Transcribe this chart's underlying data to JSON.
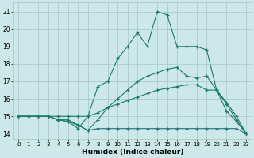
{
  "xlabel": "Humidex (Indice chaleur)",
  "background_color": "#cde8e8",
  "grid_color": "#a0c8c8",
  "line_color": "#1a7a6e",
  "x_ticks": [
    0,
    1,
    2,
    3,
    4,
    5,
    6,
    7,
    8,
    9,
    10,
    11,
    12,
    13,
    14,
    15,
    16,
    17,
    18,
    19,
    20,
    21,
    22,
    23
  ],
  "y_ticks": [
    14,
    15,
    16,
    17,
    18,
    19,
    20,
    21
  ],
  "ylim": [
    13.7,
    21.5
  ],
  "xlim": [
    -0.5,
    23.5
  ],
  "line_peak_x": [
    0,
    1,
    2,
    3,
    4,
    5,
    6,
    7,
    8,
    9,
    10,
    11,
    12,
    13,
    14,
    15,
    16,
    17,
    18,
    19,
    20,
    21,
    22,
    23
  ],
  "line_peak_y": [
    15,
    15,
    15,
    15,
    14.8,
    14.7,
    14.3,
    15.0,
    16.7,
    17.0,
    18.3,
    19.0,
    19.8,
    19.0,
    21.0,
    20.8,
    19.0,
    19.0,
    19.0,
    18.8,
    16.5,
    15.3,
    14.7,
    14.0
  ],
  "line_mid1_x": [
    0,
    1,
    2,
    3,
    4,
    5,
    6,
    7,
    8,
    9,
    10,
    11,
    12,
    13,
    14,
    15,
    16,
    17,
    18,
    19,
    20,
    21,
    22,
    23
  ],
  "line_mid1_y": [
    15,
    15,
    15,
    15,
    14.8,
    14.8,
    14.5,
    14.2,
    14.8,
    15.5,
    16.0,
    16.5,
    17.0,
    17.3,
    17.5,
    17.7,
    17.8,
    17.3,
    17.2,
    17.3,
    16.5,
    15.7,
    14.8,
    14.0
  ],
  "line_mid2_x": [
    0,
    1,
    2,
    3,
    4,
    5,
    6,
    7,
    8,
    9,
    10,
    11,
    12,
    13,
    14,
    15,
    16,
    17,
    18,
    19,
    20,
    21,
    22,
    23
  ],
  "line_mid2_y": [
    15,
    15,
    15,
    15,
    15,
    15,
    15,
    15,
    15.2,
    15.5,
    15.7,
    15.9,
    16.1,
    16.3,
    16.5,
    16.6,
    16.7,
    16.8,
    16.8,
    16.5,
    16.5,
    15.8,
    15.0,
    14.0
  ],
  "line_bot_x": [
    0,
    1,
    2,
    3,
    4,
    5,
    6,
    7,
    8,
    9,
    10,
    11,
    12,
    13,
    14,
    15,
    16,
    17,
    18,
    19,
    20,
    21,
    22,
    23
  ],
  "line_bot_y": [
    15,
    15,
    15,
    15,
    14.8,
    14.7,
    14.5,
    14.2,
    14.3,
    14.3,
    14.3,
    14.3,
    14.3,
    14.3,
    14.3,
    14.3,
    14.3,
    14.3,
    14.3,
    14.3,
    14.3,
    14.3,
    14.3,
    14.0
  ]
}
